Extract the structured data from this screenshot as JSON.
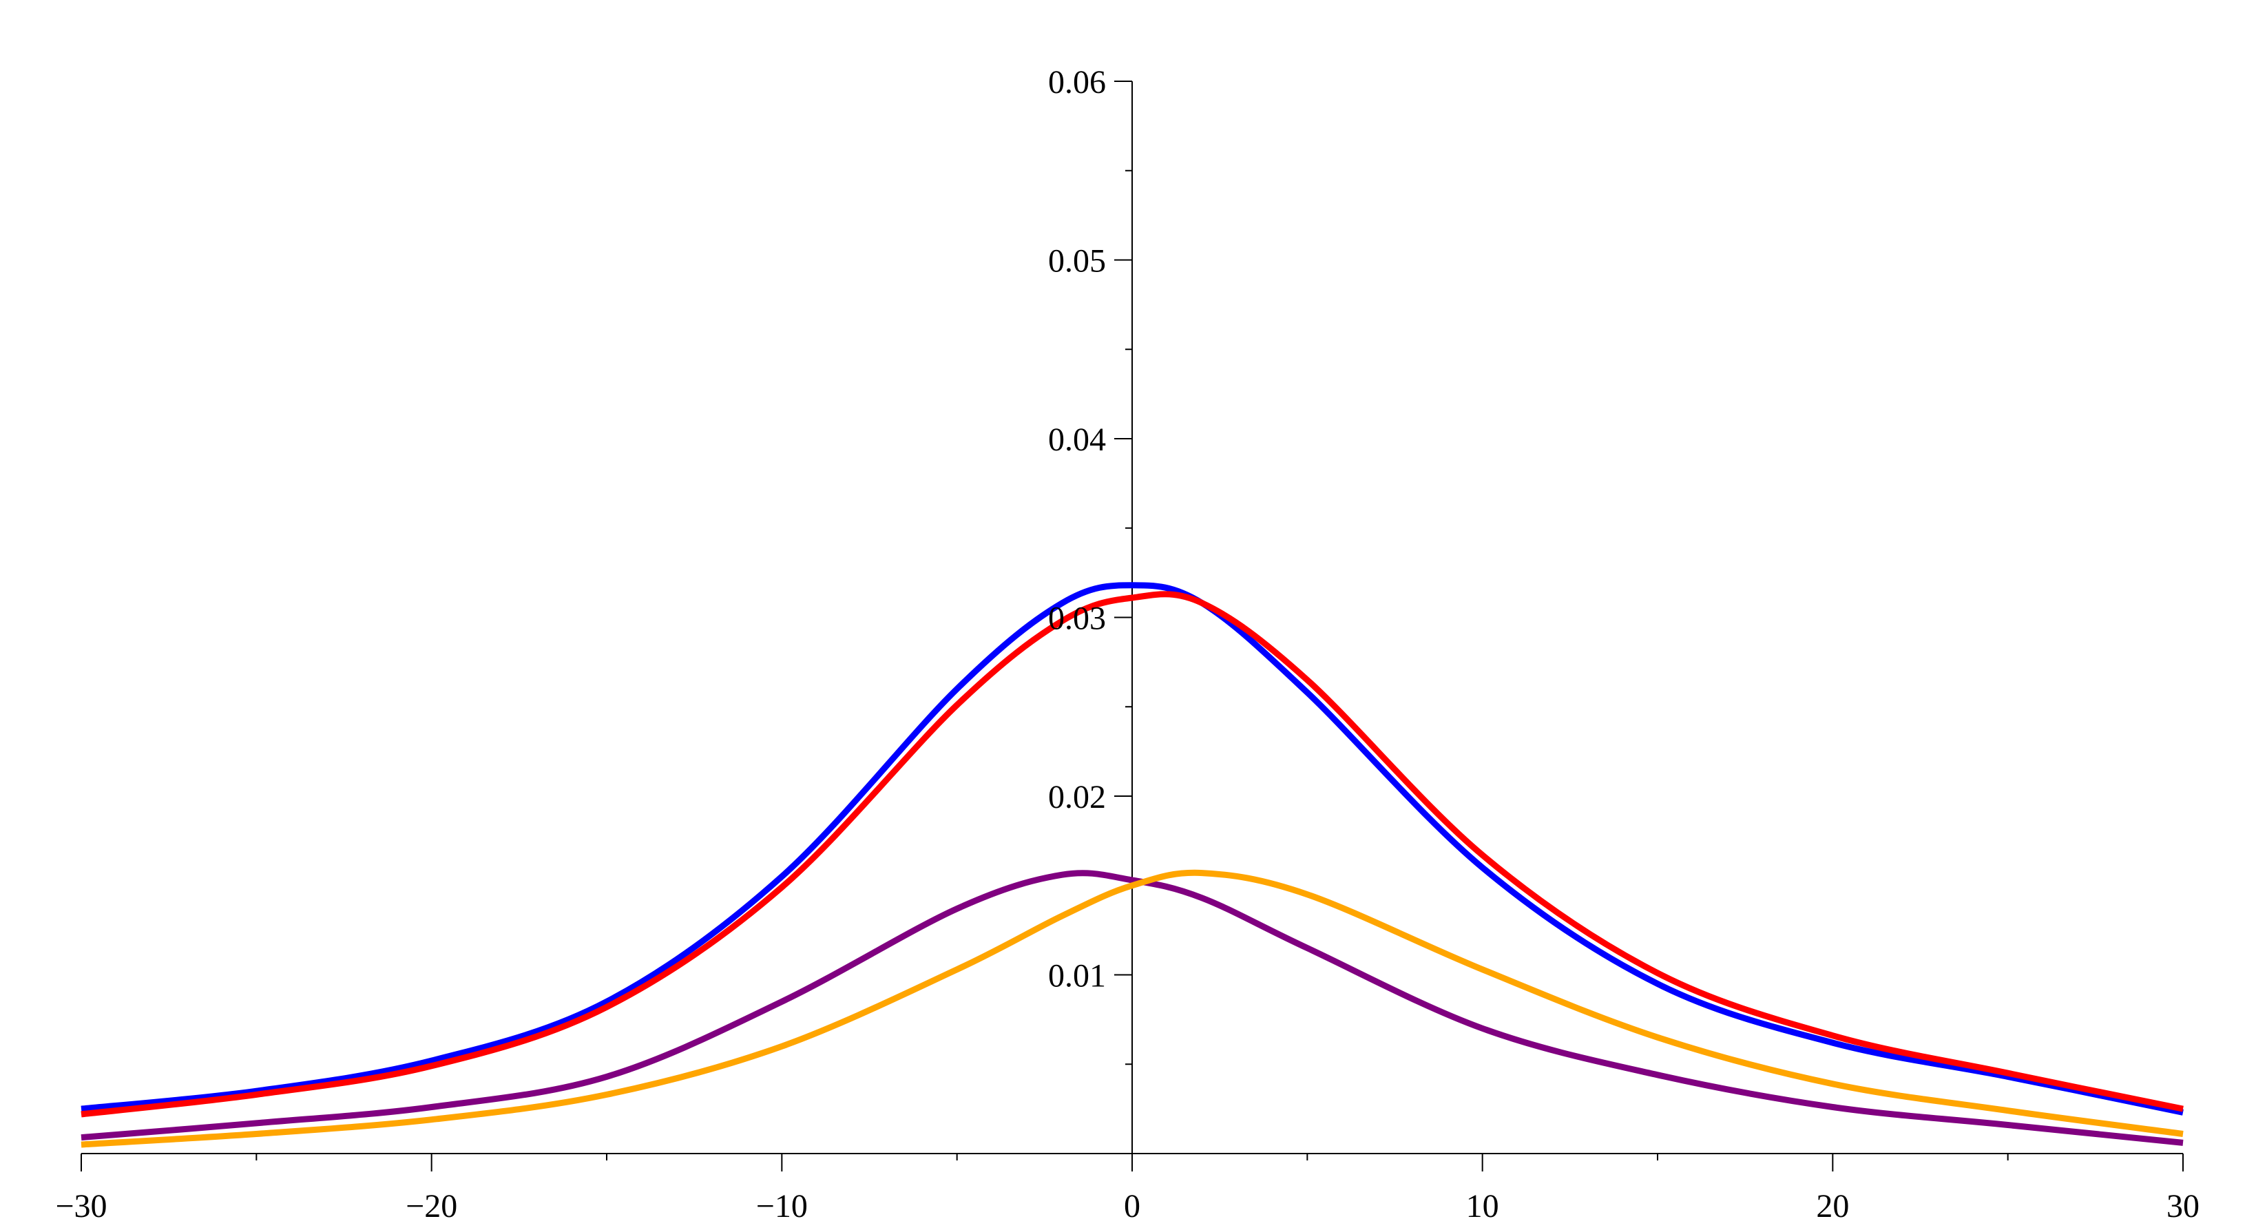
{
  "chart_data": {
    "type": "line",
    "title": "",
    "xlabel": "",
    "ylabel": "",
    "xlim": [
      -30,
      30
    ],
    "ylim": [
      0,
      0.06
    ],
    "grid": false,
    "legend": "none",
    "x_ticks": [
      -30,
      -20,
      -10,
      0,
      10,
      20,
      30
    ],
    "x_tick_labels": [
      "−30",
      "−20",
      "−10",
      "0",
      "10",
      "20",
      "30"
    ],
    "y_ticks": [
      0.01,
      0.02,
      0.03,
      0.04,
      0.05,
      0.06
    ],
    "y_tick_labels": [
      "0.01",
      "0.02",
      "0.03",
      "0.04",
      "0.05",
      "0.06"
    ],
    "x": [
      -30,
      -25,
      -20,
      -15,
      -10,
      -5,
      -2,
      0,
      2,
      5,
      10,
      15,
      20,
      25,
      30
    ],
    "series": [
      {
        "name": "blue",
        "color": "#0000ff",
        "values": [
          0.0025,
          0.0035,
          0.0052,
          0.0085,
          0.0155,
          0.026,
          0.0308,
          0.0318,
          0.0308,
          0.0258,
          0.016,
          0.0095,
          0.0062,
          0.0043,
          0.0023
        ]
      },
      {
        "name": "red",
        "color": "#ff0000",
        "values": [
          0.0022,
          0.0033,
          0.0049,
          0.0082,
          0.0149,
          0.0251,
          0.0298,
          0.0311,
          0.0308,
          0.0265,
          0.0167,
          0.0101,
          0.0066,
          0.0045,
          0.0025
        ]
      },
      {
        "name": "purple",
        "color": "#800080",
        "values": [
          0.0009,
          0.0017,
          0.0026,
          0.0043,
          0.0085,
          0.0137,
          0.0156,
          0.0153,
          0.0143,
          0.0115,
          0.007,
          0.0044,
          0.0026,
          0.0016,
          0.0006
        ]
      },
      {
        "name": "orange",
        "color": "#ffa500",
        "values": [
          0.0005,
          0.0011,
          0.0019,
          0.0033,
          0.006,
          0.0103,
          0.0133,
          0.015,
          0.0157,
          0.0145,
          0.0103,
          0.0065,
          0.0039,
          0.0024,
          0.0011
        ]
      }
    ]
  }
}
